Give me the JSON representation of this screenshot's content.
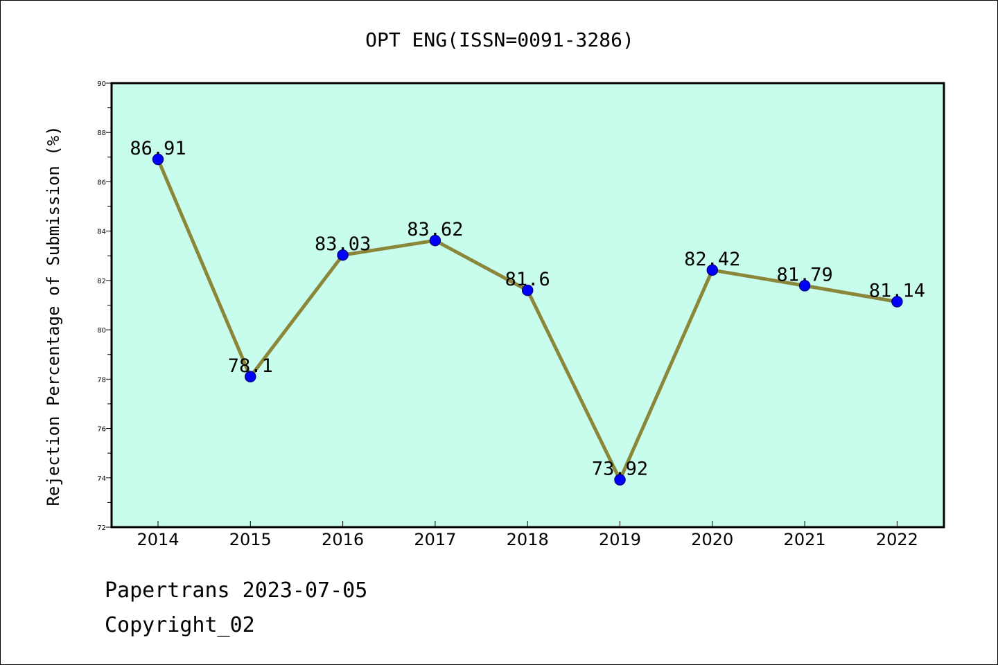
{
  "footer": {
    "line1": "Papertrans 2023-07-05",
    "line2": "Copyright_02"
  },
  "colors": {
    "plot_background": "#c8fcec",
    "line": "#8b873a",
    "marker": "#0000ff",
    "marker_edge": "#00008b"
  },
  "chart_data": {
    "type": "line",
    "title": "OPT ENG(ISSN=0091-3286)",
    "xlabel": "",
    "ylabel": "Rejection Percentage of Submission (%)",
    "x": [
      "2014",
      "2015",
      "2016",
      "2017",
      "2018",
      "2019",
      "2020",
      "2021",
      "2022"
    ],
    "series": [
      {
        "values": [
          86.91,
          78.1,
          83.03,
          83.62,
          81.6,
          73.92,
          82.42,
          81.79,
          81.14
        ],
        "labels": [
          "86.91",
          "78.1",
          "83.03",
          "83.62",
          "81.6",
          "73.92",
          "82.42",
          "81.79",
          "81.14"
        ]
      }
    ],
    "ylim": [
      72,
      90
    ],
    "yticks": [
      72,
      74,
      76,
      78,
      80,
      82,
      84,
      86,
      88,
      90
    ],
    "grid": false,
    "legend": "none"
  }
}
